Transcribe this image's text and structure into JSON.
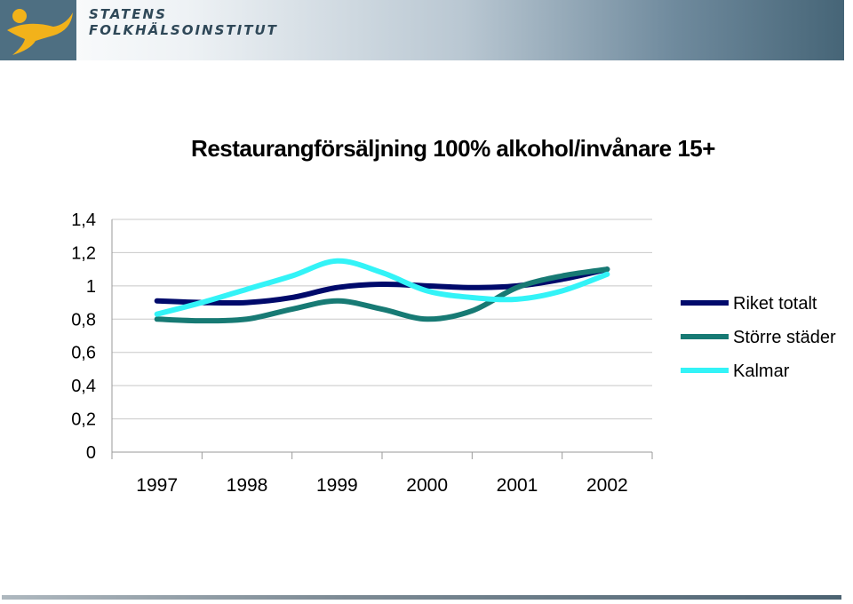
{
  "header": {
    "org_line1": "STATENS",
    "org_line2": "FOLKHÄLSOINSTITUT",
    "logo_icon": "running-figure-icon",
    "logo_color": "#f2b21a"
  },
  "chart_data": {
    "type": "line",
    "title": "Restaurangförsäljning 100% alkohol/invånare 15+",
    "xlabel": "",
    "ylabel": "",
    "x": [
      1997,
      1997.5,
      1998,
      1998.5,
      1999,
      1999.5,
      2000,
      2000.5,
      2001,
      2001.5,
      2002
    ],
    "x_ticks": [
      "1997",
      "1998",
      "1999",
      "2000",
      "2001",
      "2002"
    ],
    "y_ticks": [
      "0",
      "0,2",
      "0,4",
      "0,6",
      "0,8",
      "1",
      "1,2",
      "1,4"
    ],
    "ylim": [
      0,
      1.4
    ],
    "grid": true,
    "legend_position": "right",
    "series": [
      {
        "name": "Riket totalt",
        "color": "#000a6b",
        "values": [
          0.91,
          0.9,
          0.9,
          0.93,
          0.99,
          1.01,
          1.0,
          0.99,
          1.0,
          1.04,
          1.1
        ]
      },
      {
        "name": "Större städer",
        "color": "#177a74",
        "values": [
          0.8,
          0.79,
          0.8,
          0.86,
          0.91,
          0.86,
          0.8,
          0.85,
          0.99,
          1.06,
          1.1
        ]
      },
      {
        "name": "Kalmar",
        "color": "#33f3f7",
        "values": [
          0.83,
          0.9,
          0.98,
          1.06,
          1.15,
          1.08,
          0.97,
          0.93,
          0.92,
          0.97,
          1.07
        ]
      }
    ]
  }
}
